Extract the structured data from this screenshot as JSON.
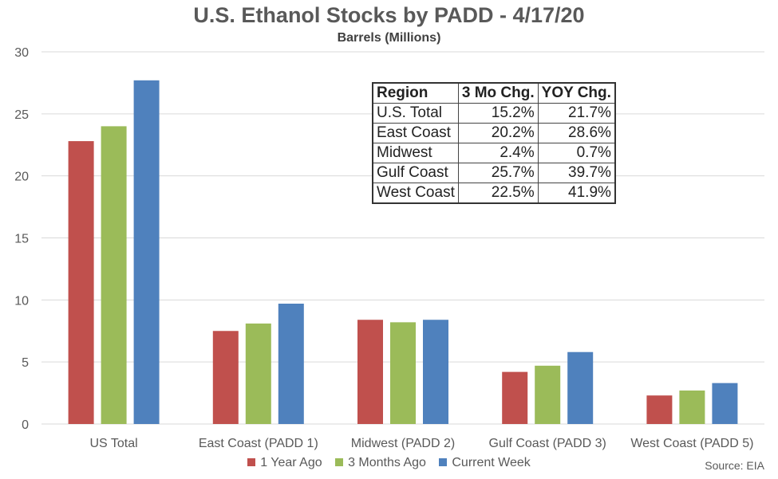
{
  "title": "U.S. Ethanol Stocks by PADD - 4/17/20",
  "subtitle": "Barrels (Millions)",
  "source": "Source: EIA",
  "chart_data": {
    "type": "bar",
    "categories": [
      "US Total",
      "East Coast (PADD 1)",
      "Midwest (PADD 2)",
      "Gulf Coast (PADD 3)",
      "West Coast (PADD 5)"
    ],
    "series": [
      {
        "name": "1 Year Ago",
        "color": "#C0504D",
        "values": [
          22.8,
          7.5,
          8.4,
          4.2,
          2.3
        ]
      },
      {
        "name": "3 Months Ago",
        "color": "#9BBB59",
        "values": [
          24.0,
          8.1,
          8.2,
          4.7,
          2.7
        ]
      },
      {
        "name": "Current Week",
        "color": "#4F81BD",
        "values": [
          27.7,
          9.7,
          8.4,
          5.8,
          3.3
        ]
      }
    ],
    "ylim": [
      0,
      30
    ],
    "yticks": [
      "0",
      "5",
      "10",
      "15",
      "20",
      "25",
      "30"
    ],
    "grid": true,
    "legend_position": "bottom"
  },
  "table": {
    "headers": [
      "Region",
      "3 Mo Chg.",
      "YOY Chg."
    ],
    "rows": [
      [
        "U.S. Total",
        "15.2%",
        "21.7%"
      ],
      [
        "East Coast",
        "20.2%",
        "28.6%"
      ],
      [
        "Midwest",
        "2.4%",
        "0.7%"
      ],
      [
        "Gulf Coast",
        "25.7%",
        "39.7%"
      ],
      [
        "West Coast",
        "22.5%",
        "41.9%"
      ]
    ]
  }
}
